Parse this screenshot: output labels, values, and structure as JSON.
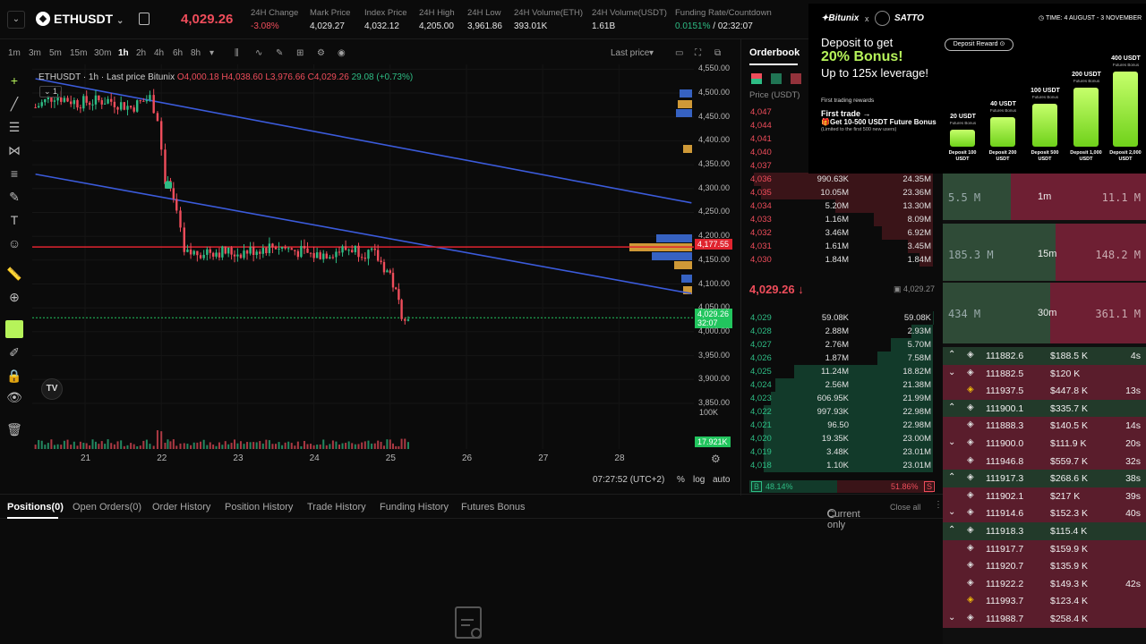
{
  "header": {
    "pair": "ETHUSDT",
    "last_price": "4,029.26",
    "stats": [
      {
        "label": "24H Change",
        "value": "-3.08%",
        "color": "#ef4d5b"
      },
      {
        "label": "Mark Price",
        "value": "4,029.27"
      },
      {
        "label": "Index Price",
        "value": "4,032.12"
      },
      {
        "label": "24H High",
        "value": "4,205.00"
      },
      {
        "label": "24H Low",
        "value": "3,961.86"
      },
      {
        "label": "24H Volume(ETH)",
        "value": "393.01K"
      },
      {
        "label": "24H Volume(USDT)",
        "value": "1.61B"
      },
      {
        "label": "Funding Rate/Countdown",
        "value": "0.0151%",
        "value2": "02:32:07"
      }
    ]
  },
  "timeframes": [
    "1m",
    "3m",
    "5m",
    "15m",
    "30m",
    "1h",
    "2h",
    "4h",
    "6h",
    "8h"
  ],
  "active_timeframe": "1h",
  "price_type": "Last price",
  "chart": {
    "legend": "ETHUSDT · 1h · Last price Bitunix",
    "ohlc": {
      "o": "4,000.18",
      "h": "4,038.60",
      "l": "3,976.66",
      "c": "4,029.26",
      "chg": "29.08 (+0.73%)"
    },
    "indicator_count": "1",
    "y_ticks": [
      "4,550.00",
      "4,500.00",
      "4,450.00",
      "4,400.00",
      "4,350.00",
      "4,300.00",
      "4,250.00",
      "4,200.00",
      "4,150.00",
      "4,100.00",
      "4,050.00",
      "4,000.00",
      "3,950.00",
      "3,900.00",
      "3,850.00"
    ],
    "x_ticks": [
      "21",
      "22",
      "23",
      "24",
      "25",
      "26",
      "27",
      "28"
    ],
    "red_line_label": "4,177.55",
    "current_label": "4,029.26",
    "current_countdown": "32:07",
    "volume_axis": "100K",
    "volume_label": "17.921K",
    "time": "07:27:52 (UTC+2)",
    "scale_options": [
      "%",
      "log",
      "auto"
    ]
  },
  "chart_data": {
    "type": "candlestick",
    "symbol": "ETHUSDT",
    "interval": "1h",
    "x_ticks": [
      "21",
      "22",
      "23",
      "24",
      "25",
      "26",
      "27",
      "28"
    ],
    "ylim": [
      3820,
      4560
    ],
    "series": [
      {
        "name": "price_path",
        "x": [
          20.35,
          20.6,
          20.9,
          21.3,
          21.6,
          21.85,
          21.95,
          22.05,
          22.12,
          22.2,
          22.3,
          22.6,
          23.0,
          23.5,
          24.0,
          24.5,
          24.8,
          25.0,
          25.15,
          25.28
        ],
        "values": [
          4470,
          4495,
          4480,
          4485,
          4470,
          4490,
          4450,
          4320,
          4290,
          4250,
          4160,
          4170,
          4165,
          4180,
          4160,
          4175,
          4160,
          4120,
          4040,
          4029
        ]
      }
    ],
    "trendlines": [
      {
        "from": [
          20.35,
          4530
        ],
        "to": [
          28.95,
          4270
        ]
      },
      {
        "from": [
          20.35,
          4330
        ],
        "to": [
          28.95,
          4080
        ]
      }
    ],
    "horizontal_line": 4177.55,
    "current_price": 4029.26
  },
  "orderbook": {
    "title": "Orderbook",
    "price_header": "Price (USDT)",
    "asks": [
      {
        "price": "4,047",
        "amount": "",
        "total": ""
      },
      {
        "price": "4,044",
        "amount": "",
        "total": ""
      },
      {
        "price": "4,041",
        "amount": "",
        "total": ""
      },
      {
        "price": "4,040",
        "amount": "",
        "total": ""
      },
      {
        "price": "4,037",
        "amount": "",
        "total": ""
      },
      {
        "price": "4,036",
        "amount": "990.63K",
        "total": "24.35M"
      },
      {
        "price": "4,035",
        "amount": "10.05M",
        "total": "23.36M"
      },
      {
        "price": "4,034",
        "amount": "5.20M",
        "total": "13.30M"
      },
      {
        "price": "4,033",
        "amount": "1.16M",
        "total": "8.09M"
      },
      {
        "price": "4,032",
        "amount": "3.46M",
        "total": "6.92M"
      },
      {
        "price": "4,031",
        "amount": "1.61M",
        "total": "3.45M"
      },
      {
        "price": "4,030",
        "amount": "1.84M",
        "total": "1.84M"
      }
    ],
    "mid_price": "4,029.26 ↓",
    "mark": "4,029.27",
    "bids": [
      {
        "price": "4,029",
        "amount": "59.08K",
        "total": "59.08K"
      },
      {
        "price": "4,028",
        "amount": "2.88M",
        "total": "2.93M"
      },
      {
        "price": "4,027",
        "amount": "2.76M",
        "total": "5.70M"
      },
      {
        "price": "4,026",
        "amount": "1.87M",
        "total": "7.58M"
      },
      {
        "price": "4,025",
        "amount": "11.24M",
        "total": "18.82M"
      },
      {
        "price": "4,024",
        "amount": "2.56M",
        "total": "21.38M"
      },
      {
        "price": "4,023",
        "amount": "606.95K",
        "total": "21.99M"
      },
      {
        "price": "4,022",
        "amount": "997.93K",
        "total": "22.98M"
      },
      {
        "price": "4,021",
        "amount": "96.50",
        "total": "22.98M"
      },
      {
        "price": "4,020",
        "amount": "19.35K",
        "total": "23.00M"
      },
      {
        "price": "4,019",
        "amount": "3.48K",
        "total": "23.01M"
      },
      {
        "price": "4,018",
        "amount": "1.10K",
        "total": "23.01M"
      }
    ],
    "buy_ratio": "48.14%",
    "sell_ratio": "51.86%",
    "b": "B",
    "s": "S"
  },
  "ad": {
    "brand": "Bitunix",
    "x": "x",
    "partner": "SATTO",
    "time": "TIME: 4 AUGUST - 3 NOVEMBER",
    "line1": "Deposit to get",
    "line2": "20% Bonus!",
    "line3": "Up to 125x leverage!",
    "reward_btn": "Deposit Reward",
    "first_rewards": "First trading rewards",
    "first_trade": "First trade →",
    "get_bonus": "Get 10-500 USDT Future Bonus",
    "limited": "(Limited to the first 500 new users)",
    "bars": [
      {
        "top": "20 USDT",
        "deposit": "Deposit 100 USDT",
        "level": 0.22
      },
      {
        "top": "40 USDT",
        "deposit": "Deposit 200 USDT",
        "level": 0.38
      },
      {
        "top": "100 USDT",
        "deposit": "Deposit 500 USDT",
        "level": 0.55
      },
      {
        "top": "200 USDT",
        "deposit": "Deposit 1,000 USDT",
        "level": 0.75
      },
      {
        "top": "400 USDT",
        "deposit": "Deposit 2,000 USDT",
        "level": 0.95
      }
    ],
    "sub": "Futures Bonus"
  },
  "liquidations": {
    "summary": [
      {
        "left": "5.5 M",
        "mid": "1m",
        "right": "11.1 M"
      },
      {
        "left": "185.3 M",
        "mid": "15m",
        "right": "148.2 M"
      },
      {
        "left": "434 M",
        "mid": "30m",
        "right": "361.1 M"
      }
    ],
    "rows": [
      {
        "price": "111882.6",
        "value": "$188.5 K",
        "age": "4s",
        "side": "buy",
        "arrow": "up"
      },
      {
        "price": "111882.5",
        "value": "$120 K",
        "age": "",
        "side": "sell",
        "arrow": "down"
      },
      {
        "price": "111937.5",
        "value": "$447.8 K",
        "age": "13s",
        "side": "sell",
        "arrow": ""
      },
      {
        "price": "111900.1",
        "value": "$335.7 K",
        "age": "",
        "side": "buy",
        "arrow": "up"
      },
      {
        "price": "111888.3",
        "value": "$140.5 K",
        "age": "14s",
        "side": "sell",
        "arrow": ""
      },
      {
        "price": "111900.0",
        "value": "$111.9 K",
        "age": "20s",
        "side": "sell",
        "arrow": "down"
      },
      {
        "price": "111946.8",
        "value": "$559.7 K",
        "age": "32s",
        "side": "sell",
        "arrow": ""
      },
      {
        "price": "111917.3",
        "value": "$268.6 K",
        "age": "38s",
        "side": "buy",
        "arrow": "up"
      },
      {
        "price": "111902.1",
        "value": "$217 K",
        "age": "39s",
        "side": "sell",
        "arrow": ""
      },
      {
        "price": "111914.6",
        "value": "$152.3 K",
        "age": "40s",
        "side": "sell",
        "arrow": "down"
      },
      {
        "price": "111918.3",
        "value": "$115.4 K",
        "age": "",
        "side": "buy",
        "arrow": "up"
      },
      {
        "price": "111917.7",
        "value": "$159.9 K",
        "age": "",
        "side": "sell",
        "arrow": ""
      },
      {
        "price": "111920.7",
        "value": "$135.9 K",
        "age": "",
        "side": "sell",
        "arrow": ""
      },
      {
        "price": "111922.2",
        "value": "$149.3 K",
        "age": "42s",
        "side": "sell",
        "arrow": ""
      },
      {
        "price": "111993.7",
        "value": "$123.4 K",
        "age": "",
        "side": "sell",
        "arrow": ""
      },
      {
        "price": "111988.7",
        "value": "$258.4 K",
        "age": "",
        "side": "sell",
        "arrow": "down"
      }
    ]
  },
  "bottom_tabs": [
    "Positions(0)",
    "Open Orders(0)",
    "Order History",
    "Position History",
    "Trade History",
    "Funding History",
    "Futures Bonus"
  ],
  "current_only": "Current only",
  "close_all": "Close all",
  "colors": {
    "up": "#2ebd85",
    "down": "#ef4d5b",
    "trend": "#3b5bdb",
    "accent": "#b6f35a"
  }
}
